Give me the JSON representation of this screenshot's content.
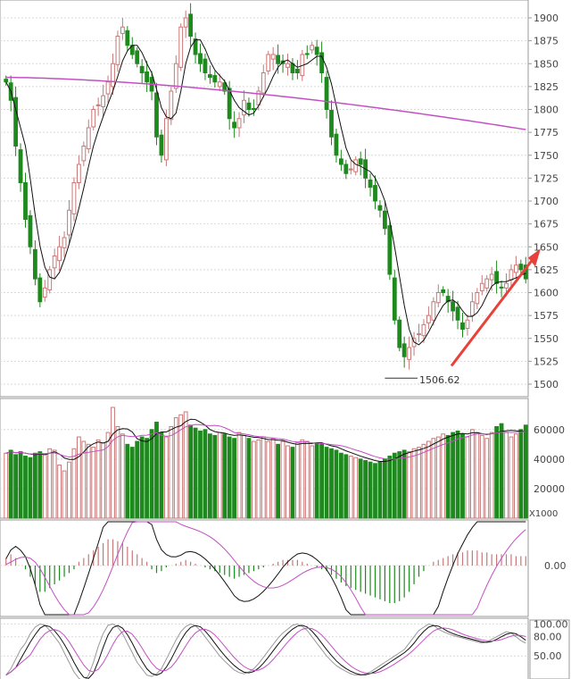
{
  "colors": {
    "up": "#c87878",
    "down": "#1e8a1e",
    "ma_short": "#111111",
    "ma_long": "#c44fc4",
    "grid": "#d9d9d9",
    "frame": "#999999",
    "trend_arrow": "#e8403a"
  },
  "chart_data": [
    {
      "type": "candlestick",
      "panel": "price",
      "ylim": [
        1490,
        1915
      ],
      "y_ticks": [
        "1500",
        "1525",
        "1550",
        "1575",
        "1600",
        "1625",
        "1650",
        "1675",
        "1700",
        "1725",
        "1750",
        "1775",
        "1800",
        "1825",
        "1850",
        "1875",
        "1900"
      ],
      "closes": [
        1830,
        1810,
        1760,
        1720,
        1680,
        1650,
        1615,
        1590,
        1605,
        1625,
        1640,
        1650,
        1660,
        1690,
        1720,
        1740,
        1760,
        1780,
        1800,
        1805,
        1815,
        1830,
        1850,
        1880,
        1890,
        1870,
        1860,
        1850,
        1840,
        1830,
        1820,
        1770,
        1750,
        1790,
        1820,
        1850,
        1890,
        1900,
        1880,
        1860,
        1850,
        1840,
        1835,
        1830,
        1830,
        1820,
        1790,
        1780,
        1790,
        1810,
        1800,
        1800,
        1820,
        1840,
        1860,
        1860,
        1850,
        1850,
        1850,
        1840,
        1840,
        1860,
        1860,
        1870,
        1860,
        1840,
        1800,
        1770,
        1750,
        1740,
        1730,
        1735,
        1745,
        1740,
        1725,
        1715,
        1700,
        1690,
        1670,
        1620,
        1570,
        1540,
        1530,
        1540,
        1550,
        1555,
        1565,
        1575,
        1590,
        1600,
        1600,
        1590,
        1580,
        1570,
        1560,
        1570,
        1590,
        1600,
        1610,
        1615,
        1620,
        1610,
        1605,
        1610,
        1625,
        1630,
        1625,
        1615
      ],
      "ma_short_last": 1620,
      "ma_long_start": 1835,
      "ma_long_end": 1778,
      "annotations": [
        {
          "label": "1506.62",
          "value": 1506.62
        }
      ]
    },
    {
      "type": "bar",
      "panel": "volume",
      "ylim": [
        0,
        75000
      ],
      "y_ticks": [
        "20000",
        "40000",
        "60000"
      ],
      "unit_label": "X1000",
      "values": [
        44000,
        46000,
        43000,
        45000,
        42000,
        41000,
        44000,
        45000,
        43000,
        47000,
        46000,
        36000,
        32000,
        38000,
        47000,
        55000,
        52000,
        50000,
        48000,
        53000,
        51000,
        58000,
        75000,
        62000,
        57000,
        50000,
        48000,
        52000,
        55000,
        54000,
        60000,
        65000,
        58000,
        55000,
        62000,
        68000,
        70000,
        72000,
        63000,
        61000,
        59000,
        60000,
        57000,
        56000,
        58000,
        57000,
        55000,
        54000,
        58000,
        56000,
        54000,
        52000,
        53000,
        55000,
        52000,
        54000,
        50000,
        52000,
        49000,
        48000,
        51000,
        53000,
        52000,
        49000,
        51000,
        50000,
        48000,
        47000,
        46000,
        44000,
        43000,
        42000,
        41000,
        40000,
        39000,
        38000,
        37000,
        38000,
        40000,
        42000,
        44000,
        45000,
        46000,
        45000,
        47000,
        48000,
        50000,
        52000,
        54000,
        55000,
        57000,
        56000,
        58000,
        59000,
        57000,
        55000,
        60000,
        58000,
        56000,
        54000,
        58000,
        62000,
        64000,
        58000,
        55000,
        57000,
        60000,
        63000
      ]
    },
    {
      "type": "bar",
      "panel": "macd",
      "ylim": [
        -30,
        20
      ],
      "y_ticks": [
        "0.00"
      ],
      "values": [
        4,
        6,
        4,
        0,
        -2,
        -6,
        -10,
        -14,
        -14,
        -12,
        -10,
        -8,
        -6,
        -4,
        -2,
        2,
        4,
        6,
        8,
        10,
        12,
        14,
        14,
        13,
        12,
        10,
        8,
        6,
        4,
        2,
        -2,
        -4,
        -3,
        -1,
        0,
        1,
        2,
        3,
        2,
        1,
        0,
        -1,
        -2,
        -3,
        -4,
        -5,
        -6,
        -7,
        -6,
        -5,
        -4,
        -3,
        -2,
        -1,
        0,
        1,
        2,
        3,
        3,
        3,
        3,
        2,
        1,
        0,
        -1,
        -2,
        -3,
        -5,
        -7,
        -9,
        -11,
        -12,
        -13,
        -14,
        -15,
        -16,
        -17,
        -18,
        -19,
        -20,
        -20,
        -19,
        -17,
        -14,
        -10,
        -6,
        -3,
        0,
        2,
        3,
        4,
        5,
        6,
        7,
        7,
        8,
        8,
        8,
        7,
        7,
        6,
        6,
        6,
        6,
        6,
        5,
        5,
        5
      ]
    },
    {
      "type": "line",
      "panel": "oscillator",
      "ylim": [
        0,
        140
      ],
      "y_ticks": [
        "50.00",
        "80.00",
        "100.00"
      ],
      "values": [
        20,
        30,
        45,
        60,
        70,
        85,
        95,
        100,
        98,
        90,
        80,
        70,
        55,
        40,
        25,
        15,
        10,
        20,
        40,
        65,
        85,
        98,
        100,
        95,
        85,
        70,
        55,
        40,
        30,
        20,
        18,
        22,
        30,
        45,
        60,
        75,
        88,
        96,
        100,
        97,
        90,
        80,
        70,
        60,
        50,
        42,
        35,
        28,
        24,
        22,
        25,
        30,
        38,
        48,
        58,
        68,
        78,
        86,
        92,
        98,
        100,
        96,
        90,
        80,
        70,
        60,
        50,
        42,
        35,
        30,
        26,
        22,
        20,
        20,
        22,
        25,
        30,
        35,
        40,
        45,
        50,
        55,
        60,
        70,
        80,
        90,
        95,
        100,
        98,
        92,
        88,
        85,
        82,
        80,
        78,
        76,
        74,
        72,
        70,
        72,
        76,
        80,
        84,
        88,
        86,
        80,
        74,
        70
      ]
    }
  ]
}
